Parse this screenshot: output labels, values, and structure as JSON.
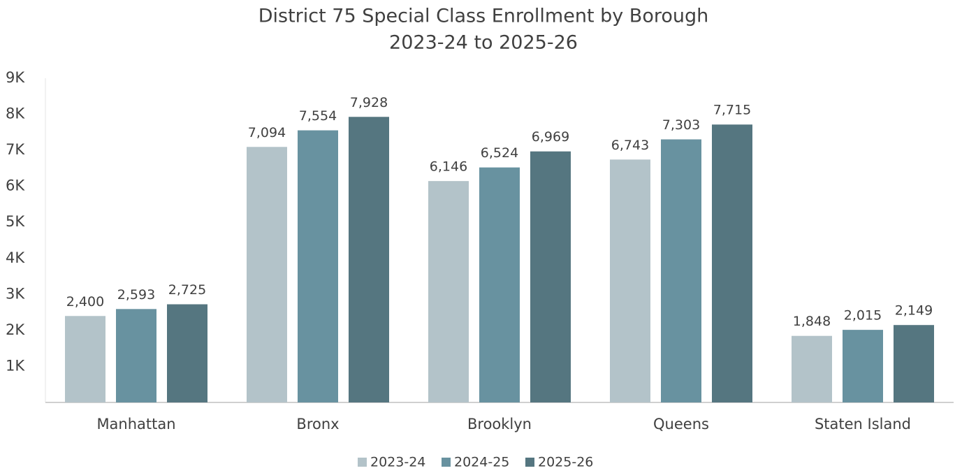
{
  "chart_data": {
    "type": "bar",
    "title": "District 75 Special Class Enrollment by Borough",
    "subtitle": "2023-24 to 2025-26",
    "categories": [
      "Manhattan",
      "Bronx",
      "Brooklyn",
      "Queens",
      "Staten Island"
    ],
    "series": [
      {
        "name": "2023-24",
        "color": "#b3c3c9",
        "values": [
          2400,
          7094,
          6146,
          6743,
          1848
        ],
        "value_labels": [
          "2,400",
          "7,094",
          "6,146",
          "6,743",
          "1,848"
        ]
      },
      {
        "name": "2024-25",
        "color": "#6892a0",
        "values": [
          2593,
          7554,
          6524,
          7303,
          2015
        ],
        "value_labels": [
          "2,593",
          "7,554",
          "6,524",
          "7,303",
          "2,015"
        ]
      },
      {
        "name": "2025-26",
        "color": "#557680",
        "values": [
          2725,
          7928,
          6969,
          7715,
          2149
        ],
        "value_labels": [
          "2,725",
          "7,928",
          "6,969",
          "7,715",
          "2,149"
        ]
      }
    ],
    "ylim": [
      0,
      9000
    ],
    "yticks": [
      {
        "value": 1000,
        "label": "1K"
      },
      {
        "value": 2000,
        "label": "2K"
      },
      {
        "value": 3000,
        "label": "3K"
      },
      {
        "value": 4000,
        "label": "4K"
      },
      {
        "value": 5000,
        "label": "5K"
      },
      {
        "value": 6000,
        "label": "6K"
      },
      {
        "value": 7000,
        "label": "7K"
      },
      {
        "value": 8000,
        "label": "8K"
      },
      {
        "value": 9000,
        "label": "9K"
      }
    ],
    "legend": "bottom"
  }
}
